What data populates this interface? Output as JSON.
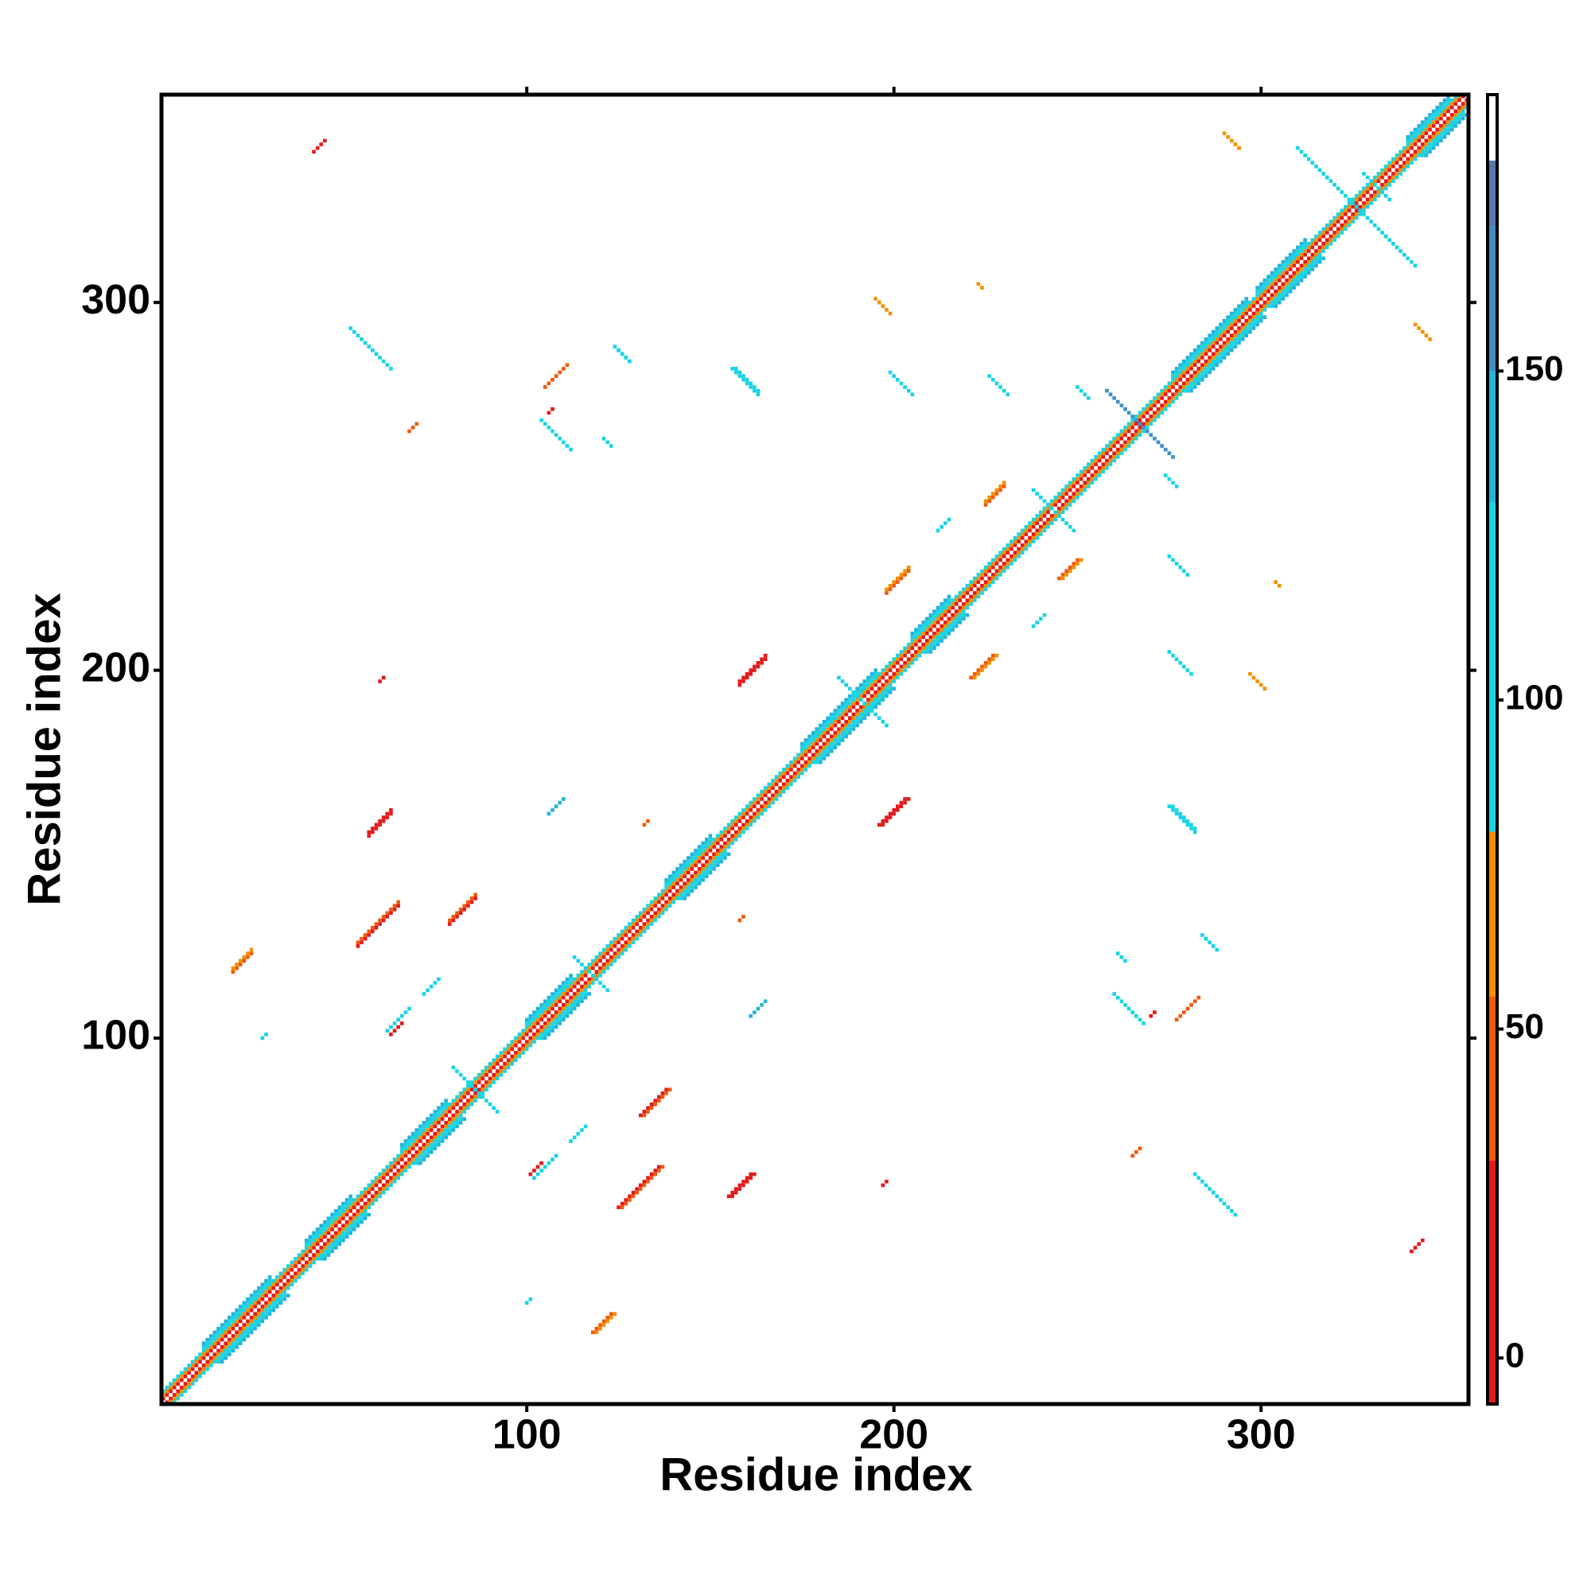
{
  "chart_data": {
    "type": "heatmap",
    "x_label": "Residue index",
    "y_label": "Residue index",
    "xlim": [
      0.5,
      356.5
    ],
    "ylim": [
      0.5,
      356.5
    ],
    "xticks": [
      100,
      200,
      300
    ],
    "yticks": [
      100,
      200,
      300
    ],
    "clim": [
      -7,
      192
    ],
    "cticks": [
      0,
      50,
      100,
      150
    ],
    "colorscale": [
      [
        -7,
        "#e31a1c"
      ],
      [
        30,
        "#ef5a0c"
      ],
      [
        55,
        "#f39000"
      ],
      [
        80,
        "#18d4e4"
      ],
      [
        130,
        "#28b2d8"
      ],
      [
        150,
        "#3f8fc4"
      ],
      [
        172,
        "#5878ac"
      ],
      [
        182,
        "#ffffff"
      ]
    ],
    "mirror": true,
    "parallel": [
      [
        1,
        355,
        1,
        20
      ],
      [
        1,
        354,
        2,
        60
      ],
      [
        1,
        353,
        3,
        95
      ],
      [
        12,
        30,
        4,
        110
      ],
      [
        12,
        30,
        5,
        140
      ],
      [
        40,
        52,
        4,
        110
      ],
      [
        40,
        52,
        5,
        140
      ],
      [
        66,
        78,
        4,
        110
      ],
      [
        66,
        78,
        5,
        140
      ],
      [
        100,
        112,
        4,
        110
      ],
      [
        100,
        112,
        5,
        140
      ],
      [
        138,
        150,
        4,
        110
      ],
      [
        138,
        150,
        5,
        140
      ],
      [
        175,
        195,
        4,
        110
      ],
      [
        175,
        195,
        5,
        140
      ],
      [
        205,
        215,
        4,
        110
      ],
      [
        205,
        215,
        5,
        140
      ],
      [
        276,
        296,
        4,
        110
      ],
      [
        276,
        296,
        5,
        140
      ],
      [
        299,
        312,
        4,
        110
      ],
      [
        299,
        312,
        5,
        140
      ],
      [
        340,
        351,
        4,
        110
      ],
      [
        340,
        351,
        5,
        140
      ],
      [
        57,
        63,
        98,
        10
      ],
      [
        57,
        63,
        99,
        20
      ],
      [
        54,
        65,
        71,
        15
      ],
      [
        54,
        65,
        72,
        50
      ],
      [
        79,
        86,
        52,
        15
      ],
      [
        79,
        86,
        53,
        45
      ],
      [
        20,
        25,
        98,
        40
      ],
      [
        20,
        25,
        99,
        60
      ],
      [
        62,
        68,
        40,
        105
      ],
      [
        63,
        66,
        38,
        20
      ],
      [
        72,
        76,
        40,
        110
      ],
      [
        158,
        165,
        38,
        8
      ],
      [
        158,
        165,
        39,
        20
      ],
      [
        60,
        61,
        137,
        20
      ],
      [
        132,
        133,
        26,
        50
      ],
      [
        106,
        110,
        55,
        140
      ],
      [
        198,
        204,
        23,
        30
      ],
      [
        198,
        204,
        24,
        55
      ],
      [
        225,
        230,
        20,
        35
      ],
      [
        225,
        230,
        21,
        60
      ],
      [
        212,
        215,
        26,
        100
      ],
      [
        105,
        111,
        172,
        50
      ],
      [
        106,
        107,
        164,
        20
      ],
      [
        68,
        70,
        197,
        50
      ],
      [
        42,
        45,
        299,
        20
      ],
      [
        28,
        29,
        72,
        100
      ]
    ],
    "antiparallel": [
      [
        156,
        163,
        438,
        120
      ],
      [
        157,
        163,
        439,
        100
      ],
      [
        199,
        205,
        480,
        110
      ],
      [
        226,
        231,
        506,
        105
      ],
      [
        250,
        253,
        527,
        100
      ],
      [
        223,
        224,
        528,
        60
      ],
      [
        195,
        199,
        496,
        60
      ],
      [
        124,
        127,
        412,
        80
      ],
      [
        125,
        128,
        412,
        105
      ],
      [
        104,
        112,
        372,
        110
      ],
      [
        121,
        123,
        384,
        95
      ],
      [
        52,
        63,
        345,
        105
      ],
      [
        310,
        318,
        652,
        110
      ],
      [
        290,
        294,
        636,
        55
      ],
      [
        318,
        326,
        652,
        115
      ],
      [
        258,
        267,
        534,
        160
      ],
      [
        238,
        245,
        487,
        120
      ],
      [
        113,
        118,
        235,
        110
      ],
      [
        80,
        86,
        172,
        105
      ],
      [
        185,
        192,
        383,
        110
      ],
      [
        328,
        332,
        663,
        115
      ]
    ]
  }
}
